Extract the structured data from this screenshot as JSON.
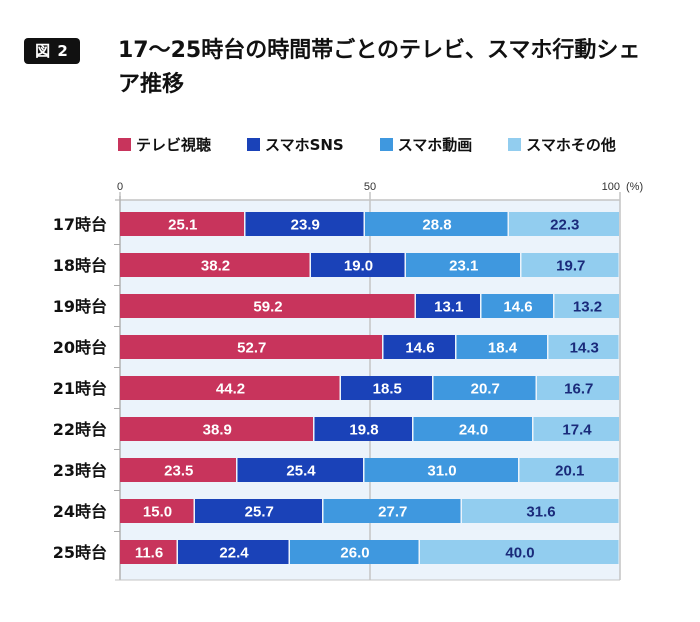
{
  "figure": {
    "badge": "図 2"
  },
  "chart_data": {
    "type": "bar",
    "orientation": "horizontal",
    "stacked": true,
    "title": "17〜25時台の時間帯ごとのテレビ、スマホ行動シェア推移",
    "xlabel": "",
    "ylabel": "",
    "unit_label": "(%)",
    "xlim": [
      0,
      100
    ],
    "xticks": [
      0,
      50,
      100
    ],
    "grid": true,
    "legend_position": "top",
    "categories": [
      "17時台",
      "18時台",
      "19時台",
      "20時台",
      "21時台",
      "22時台",
      "23時台",
      "24時台",
      "25時台"
    ],
    "series": [
      {
        "name": "テレビ視聴",
        "color": "#c8345c",
        "label_color": "#ffffff",
        "values": [
          25.1,
          38.2,
          59.2,
          52.7,
          44.2,
          38.9,
          23.5,
          15.0,
          11.6
        ]
      },
      {
        "name": "スマホSNS",
        "color": "#1a42b8",
        "label_color": "#ffffff",
        "values": [
          23.9,
          19.0,
          13.1,
          14.6,
          18.5,
          19.8,
          25.4,
          25.7,
          22.4
        ]
      },
      {
        "name": "スマホ動画",
        "color": "#3f98df",
        "label_color": "#ffffff",
        "values": [
          28.8,
          23.1,
          14.6,
          18.4,
          20.7,
          24.0,
          31.0,
          27.7,
          26.0
        ]
      },
      {
        "name": "スマホその他",
        "color": "#92cdef",
        "label_color": "#1a2a7a",
        "values": [
          22.3,
          19.7,
          13.2,
          14.3,
          16.7,
          17.4,
          20.1,
          31.6,
          40.0
        ]
      }
    ],
    "plot_background": "#ebf3fb"
  }
}
